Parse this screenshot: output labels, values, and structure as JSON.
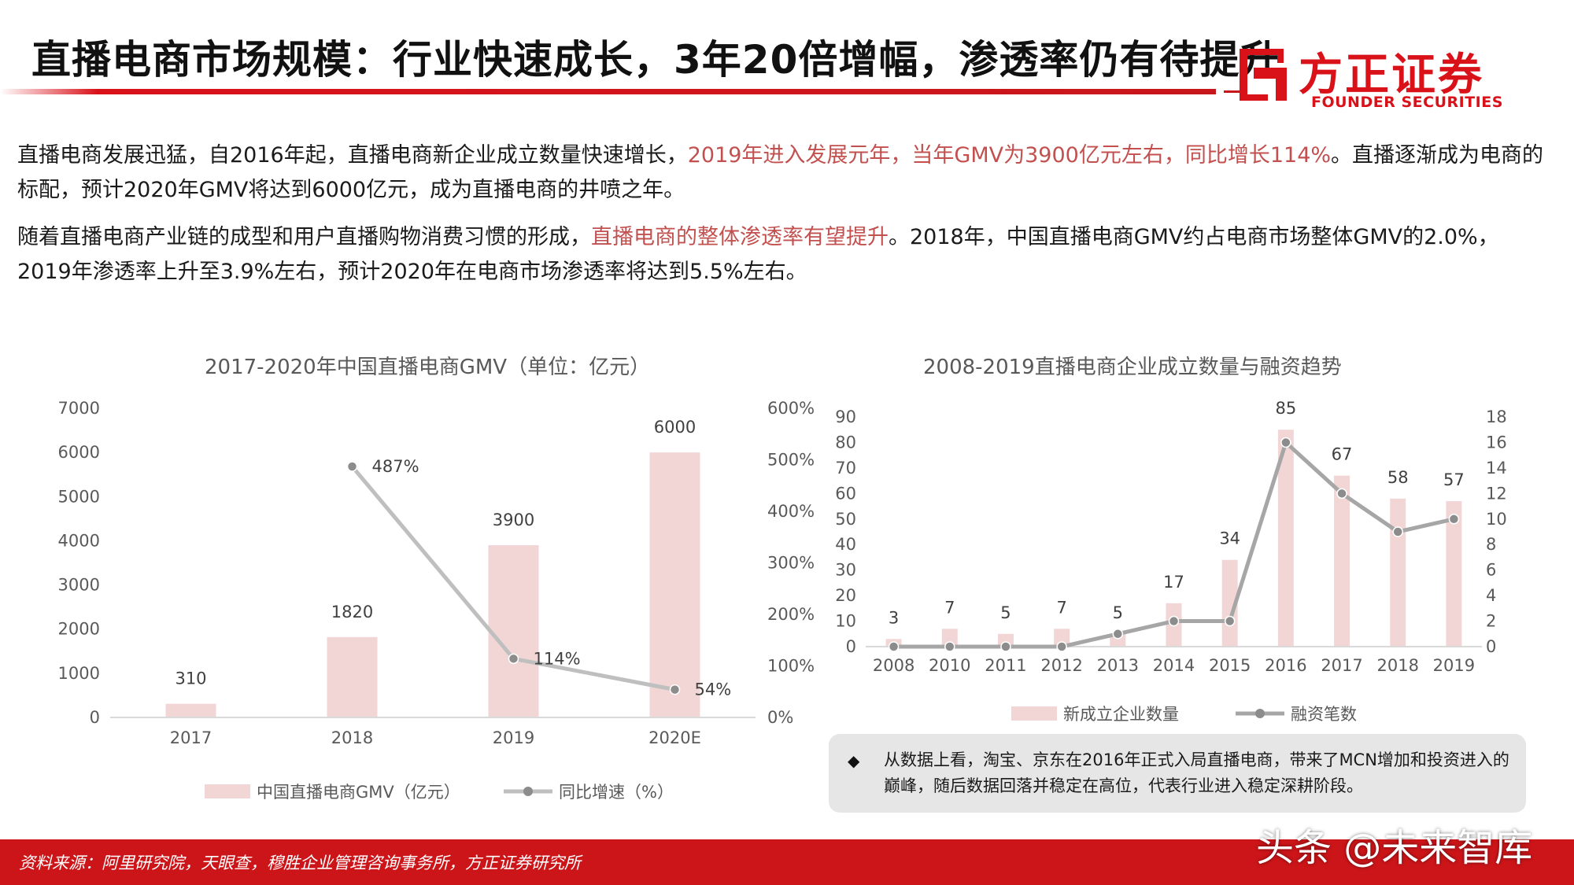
{
  "header": {
    "title": "直播电商市场规模：行业快速成长，3年20倍增幅，渗透率仍有待提升",
    "logo_cn": "方正证券",
    "logo_en": "FOUNDER SECURITIES"
  },
  "paragraphs": [
    [
      {
        "text": "直播电商发展迅猛，自2016年起，直播电商新企业成立数量快速增长，",
        "highlight": false
      },
      {
        "text": "2019年进入发展元年，当年GMV为3900亿元左右，同比增长114%",
        "highlight": true
      },
      {
        "text": "。直播逐渐成为电商的标配，预计2020年GMV将达到6000亿元，成为直播电商的井喷之年。",
        "highlight": false
      }
    ],
    [
      {
        "text": "随着直播电商产业链的成型和用户直播购物消费习惯的形成，",
        "highlight": false
      },
      {
        "text": "直播电商的整体渗透率有望提升",
        "highlight": true
      },
      {
        "text": "。2018年，中国直播电商GMV约占电商市场整体GMV的2.0%，2019年渗透率上升至3.9%左右，预计2020年在电商市场渗透率将达到5.5%左右。",
        "highlight": false
      }
    ]
  ],
  "chart_data": [
    {
      "type": "bar",
      "title": "2017-2020年中国直播电商GMV（单位：亿元）",
      "categories": [
        "2017",
        "2018",
        "2019",
        "2020E"
      ],
      "series": [
        {
          "name": "中国直播电商GMV（亿元）",
          "type": "bar",
          "axis": "left",
          "values": [
            310,
            1820,
            3900,
            6000
          ],
          "labels": [
            "310",
            "1820",
            "3900",
            "6000"
          ]
        },
        {
          "name": "同比增速（%）",
          "type": "line",
          "axis": "right",
          "values": [
            null,
            487,
            114,
            54
          ],
          "labels": [
            "",
            "487%",
            "114%",
            "54%"
          ]
        }
      ],
      "ylim_left": [
        0,
        7000
      ],
      "yticks_left": [
        "0",
        "1000",
        "2000",
        "3000",
        "4000",
        "5000",
        "6000",
        "7000"
      ],
      "ylim_right": [
        0,
        600
      ],
      "yticks_right": [
        "0%",
        "100%",
        "200%",
        "300%",
        "400%",
        "500%",
        "600%"
      ],
      "grid": false,
      "legend_position": "bottom",
      "colors": {
        "bar": "#f2d6d6",
        "line": "#bfbfbf"
      }
    },
    {
      "type": "bar",
      "title": "2008-2019直播电商企业成立数量与融资趋势",
      "categories": [
        "2008",
        "2010",
        "2011",
        "2012",
        "2013",
        "2014",
        "2015",
        "2016",
        "2017",
        "2018",
        "2019"
      ],
      "series": [
        {
          "name": "新成立企业数量",
          "type": "bar",
          "axis": "left",
          "values": [
            3,
            7,
            5,
            7,
            5,
            17,
            34,
            85,
            67,
            58,
            57
          ],
          "labels": [
            "3",
            "7",
            "5",
            "7",
            "5",
            "17",
            "34",
            "85",
            "67",
            "58",
            "57"
          ]
        },
        {
          "name": "融资笔数",
          "type": "line",
          "axis": "right",
          "values": [
            0,
            0,
            0,
            0,
            1,
            2,
            2,
            16,
            12,
            9,
            10
          ]
        }
      ],
      "ylim_left": [
        0,
        90
      ],
      "yticks_left": [
        "0",
        "10",
        "20",
        "30",
        "40",
        "50",
        "60",
        "70",
        "80",
        "90"
      ],
      "ylim_right": [
        0,
        18
      ],
      "yticks_right": [
        "0",
        "2",
        "4",
        "6",
        "8",
        "10",
        "12",
        "14",
        "16",
        "18"
      ],
      "grid": false,
      "legend_position": "bottom",
      "colors": {
        "bar": "#f2d6d6",
        "line": "#a6a6a6"
      }
    }
  ],
  "note": {
    "bullet": "◆",
    "text": "从数据上看，淘宝、京东在2016年正式入局直播电商，带来了MCN增加和投资进入的巅峰，随后数据回落并稳定在高位，代表行业进入稳定深耕阶段。"
  },
  "footer": {
    "source": "资料来源：阿里研究院，天眼查，穆胜企业管理咨询事务所，方正证券研究所"
  },
  "watermark": "头条 @未来智库"
}
